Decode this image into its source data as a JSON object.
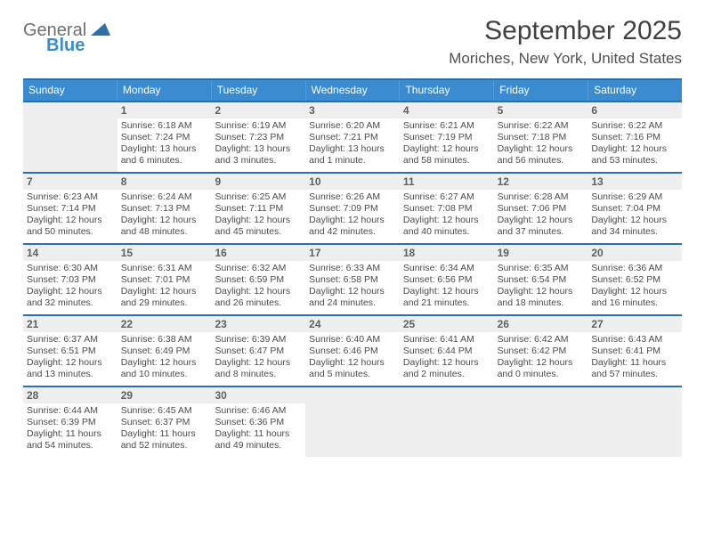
{
  "brand": {
    "line1": "General",
    "line2": "Blue"
  },
  "title": "September 2025",
  "location": "Moriches, New York, United States",
  "colors": {
    "header_bg": "#3a8bd0",
    "header_text": "#ffffff",
    "border": "#2f6fa8",
    "shaded_bg": "#eeeeee",
    "text": "#4b4b4b",
    "title_text": "#404040"
  },
  "weekdays": [
    "Sunday",
    "Monday",
    "Tuesday",
    "Wednesday",
    "Thursday",
    "Friday",
    "Saturday"
  ],
  "weeks": [
    [
      {
        "day": "",
        "sunrise": "",
        "sunset": "",
        "daylight": "",
        "empty": true
      },
      {
        "day": "1",
        "sunrise": "Sunrise: 6:18 AM",
        "sunset": "Sunset: 7:24 PM",
        "daylight": "Daylight: 13 hours and 6 minutes."
      },
      {
        "day": "2",
        "sunrise": "Sunrise: 6:19 AM",
        "sunset": "Sunset: 7:23 PM",
        "daylight": "Daylight: 13 hours and 3 minutes."
      },
      {
        "day": "3",
        "sunrise": "Sunrise: 6:20 AM",
        "sunset": "Sunset: 7:21 PM",
        "daylight": "Daylight: 13 hours and 1 minute."
      },
      {
        "day": "4",
        "sunrise": "Sunrise: 6:21 AM",
        "sunset": "Sunset: 7:19 PM",
        "daylight": "Daylight: 12 hours and 58 minutes."
      },
      {
        "day": "5",
        "sunrise": "Sunrise: 6:22 AM",
        "sunset": "Sunset: 7:18 PM",
        "daylight": "Daylight: 12 hours and 56 minutes."
      },
      {
        "day": "6",
        "sunrise": "Sunrise: 6:22 AM",
        "sunset": "Sunset: 7:16 PM",
        "daylight": "Daylight: 12 hours and 53 minutes."
      }
    ],
    [
      {
        "day": "7",
        "sunrise": "Sunrise: 6:23 AM",
        "sunset": "Sunset: 7:14 PM",
        "daylight": "Daylight: 12 hours and 50 minutes."
      },
      {
        "day": "8",
        "sunrise": "Sunrise: 6:24 AM",
        "sunset": "Sunset: 7:13 PM",
        "daylight": "Daylight: 12 hours and 48 minutes."
      },
      {
        "day": "9",
        "sunrise": "Sunrise: 6:25 AM",
        "sunset": "Sunset: 7:11 PM",
        "daylight": "Daylight: 12 hours and 45 minutes."
      },
      {
        "day": "10",
        "sunrise": "Sunrise: 6:26 AM",
        "sunset": "Sunset: 7:09 PM",
        "daylight": "Daylight: 12 hours and 42 minutes."
      },
      {
        "day": "11",
        "sunrise": "Sunrise: 6:27 AM",
        "sunset": "Sunset: 7:08 PM",
        "daylight": "Daylight: 12 hours and 40 minutes."
      },
      {
        "day": "12",
        "sunrise": "Sunrise: 6:28 AM",
        "sunset": "Sunset: 7:06 PM",
        "daylight": "Daylight: 12 hours and 37 minutes."
      },
      {
        "day": "13",
        "sunrise": "Sunrise: 6:29 AM",
        "sunset": "Sunset: 7:04 PM",
        "daylight": "Daylight: 12 hours and 34 minutes."
      }
    ],
    [
      {
        "day": "14",
        "sunrise": "Sunrise: 6:30 AM",
        "sunset": "Sunset: 7:03 PM",
        "daylight": "Daylight: 12 hours and 32 minutes."
      },
      {
        "day": "15",
        "sunrise": "Sunrise: 6:31 AM",
        "sunset": "Sunset: 7:01 PM",
        "daylight": "Daylight: 12 hours and 29 minutes."
      },
      {
        "day": "16",
        "sunrise": "Sunrise: 6:32 AM",
        "sunset": "Sunset: 6:59 PM",
        "daylight": "Daylight: 12 hours and 26 minutes."
      },
      {
        "day": "17",
        "sunrise": "Sunrise: 6:33 AM",
        "sunset": "Sunset: 6:58 PM",
        "daylight": "Daylight: 12 hours and 24 minutes."
      },
      {
        "day": "18",
        "sunrise": "Sunrise: 6:34 AM",
        "sunset": "Sunset: 6:56 PM",
        "daylight": "Daylight: 12 hours and 21 minutes."
      },
      {
        "day": "19",
        "sunrise": "Sunrise: 6:35 AM",
        "sunset": "Sunset: 6:54 PM",
        "daylight": "Daylight: 12 hours and 18 minutes."
      },
      {
        "day": "20",
        "sunrise": "Sunrise: 6:36 AM",
        "sunset": "Sunset: 6:52 PM",
        "daylight": "Daylight: 12 hours and 16 minutes."
      }
    ],
    [
      {
        "day": "21",
        "sunrise": "Sunrise: 6:37 AM",
        "sunset": "Sunset: 6:51 PM",
        "daylight": "Daylight: 12 hours and 13 minutes."
      },
      {
        "day": "22",
        "sunrise": "Sunrise: 6:38 AM",
        "sunset": "Sunset: 6:49 PM",
        "daylight": "Daylight: 12 hours and 10 minutes."
      },
      {
        "day": "23",
        "sunrise": "Sunrise: 6:39 AM",
        "sunset": "Sunset: 6:47 PM",
        "daylight": "Daylight: 12 hours and 8 minutes."
      },
      {
        "day": "24",
        "sunrise": "Sunrise: 6:40 AM",
        "sunset": "Sunset: 6:46 PM",
        "daylight": "Daylight: 12 hours and 5 minutes."
      },
      {
        "day": "25",
        "sunrise": "Sunrise: 6:41 AM",
        "sunset": "Sunset: 6:44 PM",
        "daylight": "Daylight: 12 hours and 2 minutes."
      },
      {
        "day": "26",
        "sunrise": "Sunrise: 6:42 AM",
        "sunset": "Sunset: 6:42 PM",
        "daylight": "Daylight: 12 hours and 0 minutes."
      },
      {
        "day": "27",
        "sunrise": "Sunrise: 6:43 AM",
        "sunset": "Sunset: 6:41 PM",
        "daylight": "Daylight: 11 hours and 57 minutes."
      }
    ],
    [
      {
        "day": "28",
        "sunrise": "Sunrise: 6:44 AM",
        "sunset": "Sunset: 6:39 PM",
        "daylight": "Daylight: 11 hours and 54 minutes."
      },
      {
        "day": "29",
        "sunrise": "Sunrise: 6:45 AM",
        "sunset": "Sunset: 6:37 PM",
        "daylight": "Daylight: 11 hours and 52 minutes."
      },
      {
        "day": "30",
        "sunrise": "Sunrise: 6:46 AM",
        "sunset": "Sunset: 6:36 PM",
        "daylight": "Daylight: 11 hours and 49 minutes."
      },
      {
        "day": "",
        "sunrise": "",
        "sunset": "",
        "daylight": "",
        "empty": true
      },
      {
        "day": "",
        "sunrise": "",
        "sunset": "",
        "daylight": "",
        "empty": true
      },
      {
        "day": "",
        "sunrise": "",
        "sunset": "",
        "daylight": "",
        "empty": true
      },
      {
        "day": "",
        "sunrise": "",
        "sunset": "",
        "daylight": "",
        "empty": true
      }
    ]
  ]
}
